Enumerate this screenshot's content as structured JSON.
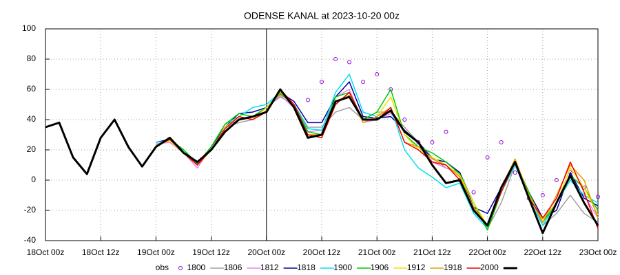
{
  "chart_data": {
    "type": "line",
    "title": "ODENSE KANAL at 2023-10-20 00z",
    "x": [
      0,
      3,
      6,
      9,
      12,
      15,
      18,
      21,
      24,
      27,
      30,
      33,
      36,
      39,
      42,
      45,
      48,
      51,
      54,
      57,
      60,
      63,
      66,
      69,
      72,
      75,
      78,
      81,
      84,
      87,
      90,
      93,
      96,
      99,
      102,
      105,
      108,
      111,
      114,
      117,
      120
    ],
    "xlim": [
      0,
      120
    ],
    "xticks": [
      {
        "value": 0,
        "label": "18Oct 00z"
      },
      {
        "value": 12,
        "label": "18Oct 12z"
      },
      {
        "value": 24,
        "label": "19Oct 00z"
      },
      {
        "value": 36,
        "label": "19Oct 12z"
      },
      {
        "value": 48,
        "label": "20Oct 00z"
      },
      {
        "value": 60,
        "label": "20Oct 12z"
      },
      {
        "value": 72,
        "label": "21Oct 00z"
      },
      {
        "value": 84,
        "label": "21Oct 12z"
      },
      {
        "value": 96,
        "label": "22Oct 00z"
      },
      {
        "value": 108,
        "label": "22Oct 12z"
      },
      {
        "value": 120,
        "label": "23Oct 00z"
      }
    ],
    "ylim": [
      -40,
      100
    ],
    "yticks": [
      -40,
      -20,
      0,
      20,
      40,
      60,
      80,
      100
    ],
    "grid": true,
    "vline_x": 48,
    "legend": "bottom",
    "series": [
      {
        "name": "obs",
        "color": "#9400d3",
        "style": "points",
        "values": [
          null,
          null,
          null,
          null,
          null,
          null,
          null,
          null,
          null,
          null,
          null,
          null,
          null,
          null,
          null,
          null,
          null,
          null,
          null,
          53,
          65,
          80,
          78,
          65,
          70,
          60,
          40,
          25,
          25,
          32,
          0,
          -8,
          15,
          25,
          5,
          -12,
          -10,
          0,
          5,
          -5,
          -11
        ]
      },
      {
        "name": "1800",
        "color": "#a0a0a0",
        "style": "line",
        "width": 1.5,
        "values": [
          null,
          null,
          null,
          null,
          null,
          null,
          null,
          null,
          23,
          27,
          18,
          10,
          22,
          35,
          38,
          40,
          48,
          55,
          50,
          35,
          35,
          45,
          48,
          40,
          45,
          45,
          35,
          25,
          15,
          8,
          5,
          -15,
          -32,
          -15,
          10,
          -8,
          -30,
          -22,
          -10,
          -22,
          -28
        ]
      },
      {
        "name": "1806",
        "color": "#ee82ee",
        "style": "line",
        "width": 1.5,
        "values": [
          null,
          null,
          null,
          null,
          null,
          null,
          null,
          null,
          24,
          25,
          18,
          8,
          22,
          35,
          40,
          42,
          48,
          56,
          48,
          32,
          33,
          55,
          60,
          38,
          40,
          44,
          33,
          25,
          12,
          8,
          5,
          -18,
          -30,
          -8,
          12,
          -10,
          -25,
          -15,
          0,
          -10,
          -25
        ]
      },
      {
        "name": "1812",
        "color": "#0000a0",
        "style": "line",
        "width": 1.5,
        "values": [
          null,
          null,
          null,
          null,
          null,
          null,
          null,
          null,
          25,
          27,
          20,
          11,
          22,
          35,
          44,
          45,
          48,
          58,
          52,
          38,
          38,
          55,
          65,
          42,
          41,
          42,
          33,
          25,
          14,
          12,
          5,
          -18,
          -22,
          -5,
          12,
          -8,
          -25,
          -20,
          5,
          -12,
          -17
        ]
      },
      {
        "name": "1818",
        "color": "#00e0f0",
        "style": "line",
        "width": 1.5,
        "values": [
          null,
          null,
          null,
          null,
          null,
          null,
          null,
          null,
          25,
          26,
          20,
          10,
          22,
          37,
          42,
          48,
          50,
          58,
          50,
          34,
          33,
          58,
          70,
          45,
          42,
          48,
          20,
          8,
          2,
          -5,
          -2,
          -22,
          -32,
          -8,
          10,
          -12,
          -30,
          -15,
          0,
          -10,
          -15
        ]
      },
      {
        "name": "1900",
        "color": "#00c800",
        "style": "line",
        "width": 1.5,
        "values": [
          null,
          null,
          null,
          null,
          null,
          null,
          null,
          null,
          22,
          27,
          20,
          11,
          22,
          37,
          44,
          42,
          48,
          57,
          50,
          32,
          30,
          55,
          58,
          40,
          45,
          60,
          30,
          22,
          18,
          12,
          4,
          -15,
          -33,
          -8,
          12,
          -8,
          -28,
          -15,
          3,
          -5,
          -20
        ]
      },
      {
        "name": "1906",
        "color": "#f0e000",
        "style": "line",
        "width": 1.5,
        "values": [
          null,
          null,
          null,
          null,
          null,
          null,
          null,
          null,
          23,
          26,
          18,
          10,
          20,
          35,
          42,
          40,
          48,
          58,
          50,
          30,
          28,
          50,
          58,
          38,
          42,
          55,
          30,
          20,
          15,
          10,
          3,
          -15,
          -30,
          -5,
          14,
          -10,
          -26,
          -15,
          8,
          -5,
          -23
        ]
      },
      {
        "name": "1912",
        "color": "#e0a000",
        "style": "line",
        "width": 1.5,
        "values": [
          null,
          null,
          null,
          null,
          null,
          null,
          null,
          null,
          23,
          27,
          18,
          10,
          20,
          34,
          42,
          40,
          46,
          58,
          50,
          30,
          30,
          52,
          56,
          38,
          42,
          48,
          25,
          22,
          14,
          10,
          2,
          -18,
          -30,
          -5,
          14,
          -10,
          -28,
          -10,
          10,
          0,
          -25
        ]
      },
      {
        "name": "1918",
        "color": "#f00000",
        "style": "line",
        "width": 1.5,
        "values": [
          null,
          null,
          null,
          null,
          null,
          null,
          null,
          null,
          22,
          27,
          18,
          10,
          20,
          34,
          42,
          40,
          45,
          60,
          50,
          30,
          28,
          50,
          58,
          40,
          40,
          48,
          25,
          20,
          12,
          10,
          0,
          -20,
          -30,
          -8,
          12,
          -12,
          -25,
          -12,
          12,
          -8,
          -32
        ]
      },
      {
        "name": "2000",
        "color": "#000000",
        "style": "line",
        "width": 3,
        "values": [
          35,
          38,
          15,
          4,
          28,
          40,
          22,
          9,
          22,
          28,
          18,
          12,
          20,
          32,
          40,
          42,
          45,
          60,
          48,
          28,
          30,
          52,
          55,
          40,
          40,
          46,
          32,
          25,
          10,
          -2,
          0,
          -20,
          -30,
          -5,
          12,
          -12,
          -35,
          -15,
          3,
          -15,
          -30
        ]
      }
    ]
  }
}
